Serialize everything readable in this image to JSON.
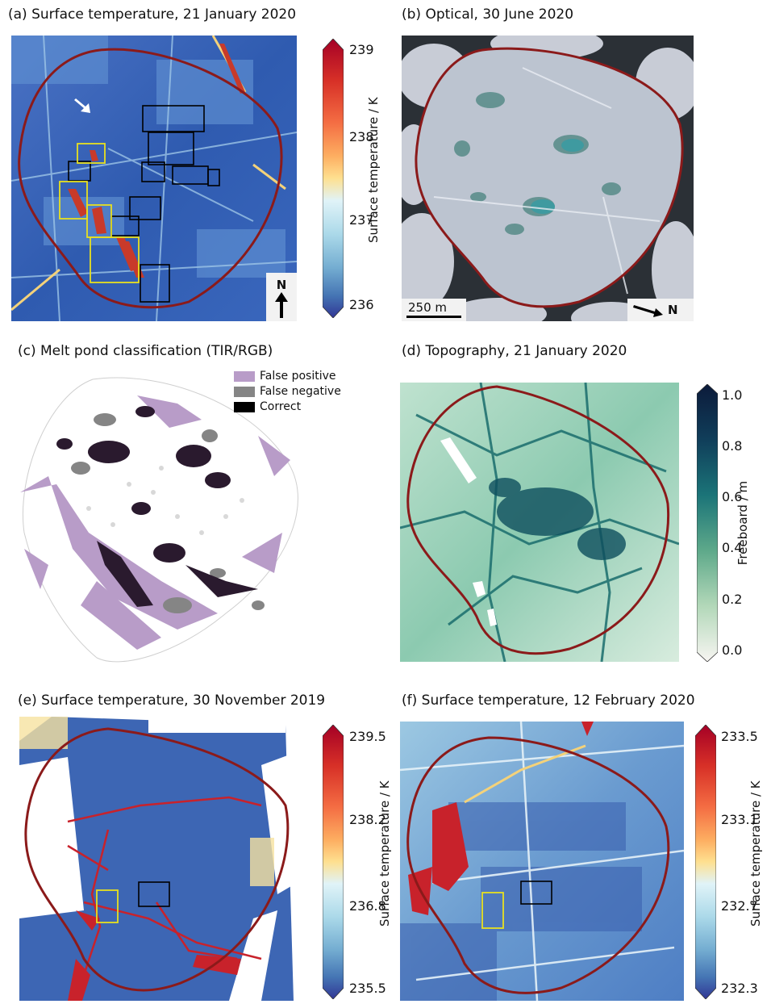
{
  "panels": {
    "a": {
      "title": "(a) Surface temperature, 21 January 2020"
    },
    "b": {
      "title": "(b) Optical, 30 June 2020",
      "scale_label": "250 m"
    },
    "c": {
      "title": "(c) Melt pond classification (TIR/RGB)"
    },
    "d": {
      "title": "(d) Topography, 21 January 2020"
    },
    "e": {
      "title": "(e) Surface temperature, 30 November 2019"
    },
    "f": {
      "title": "(f) Surface temperature, 12 February 2020"
    }
  },
  "north_label": "N",
  "colorbars": {
    "a": {
      "label": "Surface temperature / K",
      "ticks": [
        "239",
        "238",
        "237",
        "236"
      ],
      "min": 236,
      "max": 239
    },
    "d": {
      "label": "Freeboard / m",
      "ticks": [
        "1.0",
        "0.8",
        "0.6",
        "0.4",
        "0.2",
        "0.0"
      ],
      "min": 0.0,
      "max": 1.0
    },
    "e": {
      "label": "Surface temperature / K",
      "ticks": [
        "239.5",
        "238.2",
        "236.8",
        "235.5"
      ],
      "min": 235.5,
      "max": 239.5
    },
    "f": {
      "label": "Surface temperature / K",
      "ticks": [
        "233.5",
        "233.1",
        "232.7",
        "232.3"
      ],
      "min": 232.3,
      "max": 233.5
    }
  },
  "legend": {
    "items": [
      {
        "label": "False positive",
        "color": "#b89cc8"
      },
      {
        "label": "False negative",
        "color": "#858585"
      },
      {
        "label": "Correct",
        "color": "#000000"
      }
    ]
  },
  "colors": {
    "outline": "#8b1a1a",
    "temp_low": "#313695",
    "temp_high": "#a50026",
    "box_black": "#000000",
    "box_yellow": "#e8e020"
  }
}
